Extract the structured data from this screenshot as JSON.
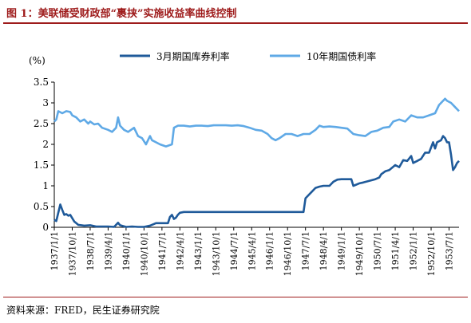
{
  "header": {
    "title": "图 1：美联储受财政部“裹挟”实施收益率曲线控制"
  },
  "footer": {
    "source": "资料来源：FRED，民生证券研究院"
  },
  "colors": {
    "title": "#9e1b1b",
    "series_3m": "#1f5a9a",
    "series_10y": "#5fa9e6"
  },
  "chart_data": {
    "type": "line",
    "yunit": "(%)",
    "ylim": [
      0,
      3.5
    ],
    "yticks": [
      "0",
      "0.5",
      "1",
      "1.5",
      "2",
      "2.5",
      "3",
      "3.5"
    ],
    "grid": false,
    "legend_position": "top-center",
    "x_tick_labels": [
      "1937/1/1",
      "1937/10/1",
      "1938/7/1",
      "1939/4/1",
      "1940/1/1",
      "1940/10/1",
      "1941/7/1",
      "1942/4/1",
      "1943/1/1",
      "1943/10/1",
      "1944/7/1",
      "1945/4/1",
      "1946/1/1",
      "1946/10/1",
      "1947/7/1",
      "1948/4/1",
      "1949/1/1",
      "1949/10/1",
      "1950/7/1",
      "1951/4/1",
      "1952/1/1",
      "1952/10/1",
      "1953/7/1"
    ],
    "series": [
      {
        "name": "3月期国库券利率",
        "color": "#1f5a9a",
        "points": [
          [
            "1937-01",
            0.18
          ],
          [
            "1937-02",
            0.15
          ],
          [
            "1937-03",
            0.35
          ],
          [
            "1937-04",
            0.55
          ],
          [
            "1937-05",
            0.42
          ],
          [
            "1937-06",
            0.3
          ],
          [
            "1937-07",
            0.32
          ],
          [
            "1937-08",
            0.28
          ],
          [
            "1937-09",
            0.3
          ],
          [
            "1937-10",
            0.22
          ],
          [
            "1937-11",
            0.14
          ],
          [
            "1937-12",
            0.1
          ],
          [
            "1938-01",
            0.06
          ],
          [
            "1938-04",
            0.04
          ],
          [
            "1938-07",
            0.05
          ],
          [
            "1938-10",
            0.02
          ],
          [
            "1939-01",
            0.02
          ],
          [
            "1939-04",
            0.02
          ],
          [
            "1939-07",
            0.01
          ],
          [
            "1939-09",
            0.11
          ],
          [
            "1939-10",
            0.05
          ],
          [
            "1940-01",
            0.01
          ],
          [
            "1940-04",
            0.02
          ],
          [
            "1940-07",
            0.01
          ],
          [
            "1940-10",
            0.01
          ],
          [
            "1941-01",
            0.04
          ],
          [
            "1941-04",
            0.1
          ],
          [
            "1941-07",
            0.1
          ],
          [
            "1941-10",
            0.1
          ],
          [
            "1941-11",
            0.25
          ],
          [
            "1941-12",
            0.3
          ],
          [
            "1942-01",
            0.2
          ],
          [
            "1942-02",
            0.23
          ],
          [
            "1942-03",
            0.3
          ],
          [
            "1942-04",
            0.35
          ],
          [
            "1942-06",
            0.37
          ],
          [
            "1942-09",
            0.37
          ],
          [
            "1943-01",
            0.37
          ],
          [
            "1944-01",
            0.37
          ],
          [
            "1945-01",
            0.37
          ],
          [
            "1946-01",
            0.37
          ],
          [
            "1947-01",
            0.37
          ],
          [
            "1947-06",
            0.37
          ],
          [
            "1947-07",
            0.7
          ],
          [
            "1947-08",
            0.75
          ],
          [
            "1947-10",
            0.85
          ],
          [
            "1947-12",
            0.95
          ],
          [
            "1948-02",
            0.98
          ],
          [
            "1948-04",
            1.0
          ],
          [
            "1948-07",
            1.0
          ],
          [
            "1948-08",
            1.05
          ],
          [
            "1948-09",
            1.1
          ],
          [
            "1948-11",
            1.15
          ],
          [
            "1949-01",
            1.16
          ],
          [
            "1949-06",
            1.16
          ],
          [
            "1949-07",
            1.0
          ],
          [
            "1949-08",
            1.02
          ],
          [
            "1949-10",
            1.06
          ],
          [
            "1949-12",
            1.08
          ],
          [
            "1950-03",
            1.12
          ],
          [
            "1950-06",
            1.16
          ],
          [
            "1950-08",
            1.2
          ],
          [
            "1950-09",
            1.28
          ],
          [
            "1950-11",
            1.35
          ],
          [
            "1951-01",
            1.38
          ],
          [
            "1951-04",
            1.5
          ],
          [
            "1951-06",
            1.45
          ],
          [
            "1951-08",
            1.62
          ],
          [
            "1951-10",
            1.6
          ],
          [
            "1951-12",
            1.72
          ],
          [
            "1952-01",
            1.55
          ],
          [
            "1952-03",
            1.6
          ],
          [
            "1952-05",
            1.65
          ],
          [
            "1952-07",
            1.8
          ],
          [
            "1952-09",
            1.8
          ],
          [
            "1952-11",
            2.05
          ],
          [
            "1952-12",
            1.9
          ],
          [
            "1953-01",
            2.05
          ],
          [
            "1953-03",
            2.1
          ],
          [
            "1953-04",
            2.2
          ],
          [
            "1953-05",
            2.15
          ],
          [
            "1953-06",
            2.05
          ],
          [
            "1953-07",
            2.05
          ],
          [
            "1953-08",
            1.75
          ],
          [
            "1953-09",
            1.38
          ],
          [
            "1953-10",
            1.45
          ],
          [
            "1953-11",
            1.55
          ],
          [
            "1953-12",
            1.6
          ]
        ]
      },
      {
        "name": "10年期国债利率",
        "color": "#5fa9e6",
        "points": [
          [
            "1937-01",
            2.55
          ],
          [
            "1937-02",
            2.6
          ],
          [
            "1937-03",
            2.8
          ],
          [
            "1937-05",
            2.75
          ],
          [
            "1937-07",
            2.8
          ],
          [
            "1937-09",
            2.78
          ],
          [
            "1937-10",
            2.7
          ],
          [
            "1937-12",
            2.65
          ],
          [
            "1938-02",
            2.55
          ],
          [
            "1938-04",
            2.6
          ],
          [
            "1938-06",
            2.5
          ],
          [
            "1938-07",
            2.55
          ],
          [
            "1938-09",
            2.48
          ],
          [
            "1938-11",
            2.5
          ],
          [
            "1939-01",
            2.4
          ],
          [
            "1939-04",
            2.35
          ],
          [
            "1939-06",
            2.3
          ],
          [
            "1939-08",
            2.4
          ],
          [
            "1939-09",
            2.65
          ],
          [
            "1939-10",
            2.45
          ],
          [
            "1939-12",
            2.35
          ],
          [
            "1940-02",
            2.3
          ],
          [
            "1940-05",
            2.4
          ],
          [
            "1940-07",
            2.2
          ],
          [
            "1940-09",
            2.15
          ],
          [
            "1940-11",
            2.0
          ],
          [
            "1941-01",
            2.2
          ],
          [
            "1941-02",
            2.1
          ],
          [
            "1941-04",
            2.05
          ],
          [
            "1941-06",
            2.0
          ],
          [
            "1941-09",
            1.95
          ],
          [
            "1941-12",
            2.0
          ],
          [
            "1942-01",
            2.4
          ],
          [
            "1942-03",
            2.45
          ],
          [
            "1942-06",
            2.45
          ],
          [
            "1942-09",
            2.43
          ],
          [
            "1942-12",
            2.45
          ],
          [
            "1943-03",
            2.45
          ],
          [
            "1943-06",
            2.44
          ],
          [
            "1943-09",
            2.46
          ],
          [
            "1943-12",
            2.46
          ],
          [
            "1944-03",
            2.46
          ],
          [
            "1944-06",
            2.45
          ],
          [
            "1944-09",
            2.46
          ],
          [
            "1944-12",
            2.44
          ],
          [
            "1945-03",
            2.4
          ],
          [
            "1945-06",
            2.35
          ],
          [
            "1945-09",
            2.33
          ],
          [
            "1945-12",
            2.25
          ],
          [
            "1946-02",
            2.15
          ],
          [
            "1946-04",
            2.1
          ],
          [
            "1946-06",
            2.15
          ],
          [
            "1946-09",
            2.25
          ],
          [
            "1946-12",
            2.25
          ],
          [
            "1947-03",
            2.2
          ],
          [
            "1947-06",
            2.25
          ],
          [
            "1947-09",
            2.25
          ],
          [
            "1947-12",
            2.35
          ],
          [
            "1948-02",
            2.45
          ],
          [
            "1948-04",
            2.42
          ],
          [
            "1948-07",
            2.43
          ],
          [
            "1948-10",
            2.42
          ],
          [
            "1949-01",
            2.4
          ],
          [
            "1949-04",
            2.38
          ],
          [
            "1949-07",
            2.25
          ],
          [
            "1949-10",
            2.22
          ],
          [
            "1950-01",
            2.2
          ],
          [
            "1950-04",
            2.3
          ],
          [
            "1950-07",
            2.33
          ],
          [
            "1950-10",
            2.4
          ],
          [
            "1951-01",
            2.42
          ],
          [
            "1951-03",
            2.55
          ],
          [
            "1951-06",
            2.6
          ],
          [
            "1951-09",
            2.55
          ],
          [
            "1951-12",
            2.7
          ],
          [
            "1952-03",
            2.65
          ],
          [
            "1952-06",
            2.65
          ],
          [
            "1952-09",
            2.7
          ],
          [
            "1952-12",
            2.75
          ],
          [
            "1953-02",
            2.95
          ],
          [
            "1953-04",
            3.05
          ],
          [
            "1953-05",
            3.1
          ],
          [
            "1953-06",
            3.05
          ],
          [
            "1953-08",
            3.0
          ],
          [
            "1953-10",
            2.9
          ],
          [
            "1953-12",
            2.8
          ]
        ]
      }
    ]
  }
}
